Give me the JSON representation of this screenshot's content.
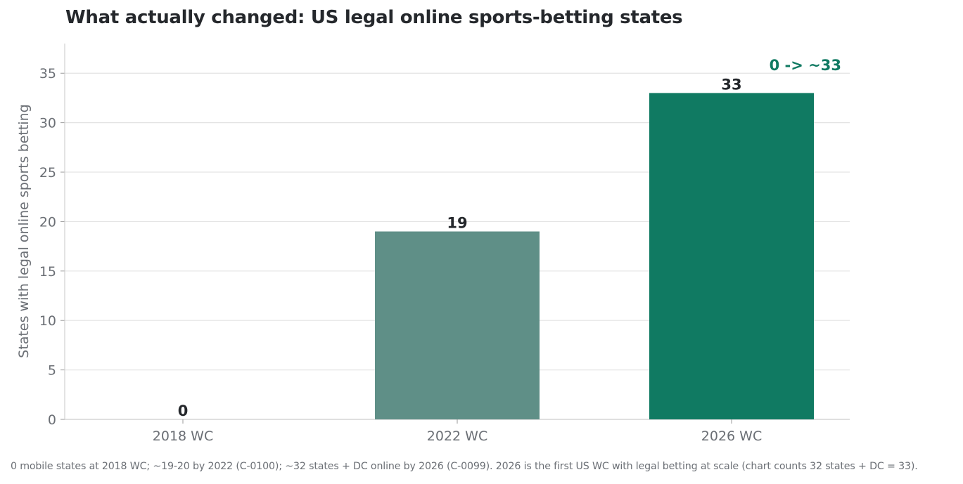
{
  "chart_data": {
    "type": "bar",
    "title": "What actually changed: US legal online sports-betting states",
    "xlabel": "",
    "ylabel": "States with legal online sports betting",
    "categories": [
      "2018 WC",
      "2022 WC",
      "2026 WC"
    ],
    "values": [
      0,
      19,
      33
    ],
    "data_labels": [
      "0",
      "19",
      "33"
    ],
    "bar_colors": [
      "#5f8f87",
      "#5f8f87",
      "#107a62"
    ],
    "ylim": [
      0,
      38
    ],
    "yticks": [
      0,
      5,
      10,
      15,
      20,
      25,
      30,
      35
    ],
    "grid": true,
    "legend": "none",
    "annotation": {
      "text": "0 -> ~33",
      "color": "#107a62"
    }
  },
  "footnote": "0 mobile states at 2018 WC; ~19-20 by 2022 (C-0100); ~32 states + DC online by 2026 (C-0099). 2026 is the first US WC with legal betting at scale (chart counts 32 states + DC = 33)."
}
